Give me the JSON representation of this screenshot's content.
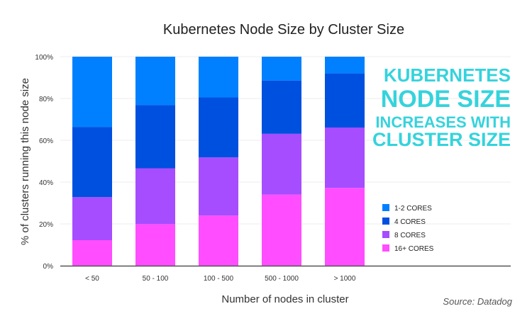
{
  "chart_data": {
    "type": "bar",
    "stacked": true,
    "title": "Kubernetes Node Size by Cluster Size",
    "xlabel": "Number of nodes in cluster",
    "ylabel": "% of clusters running this node size",
    "ylim": [
      0,
      100
    ],
    "yticks": [
      "0%",
      "20%",
      "40%",
      "60%",
      "80%",
      "100%"
    ],
    "grid": true,
    "legend_position": "right",
    "categories": [
      "< 50",
      "50 - 100",
      "100 - 500",
      "500 - 1000",
      "> 1000"
    ],
    "series": [
      {
        "name": "16+ CORES",
        "color": "#ff4dff",
        "values": [
          12.2,
          19.9,
          24.0,
          34.0,
          37.2
        ]
      },
      {
        "name": "8 CORES",
        "color": "#a64dff",
        "values": [
          20.6,
          26.7,
          27.8,
          29.1,
          28.9
        ]
      },
      {
        "name": "4 CORES",
        "color": "#0050e0",
        "values": [
          33.6,
          30.3,
          28.7,
          25.5,
          25.9
        ]
      },
      {
        "name": "1-2 CORES",
        "color": "#0080ff",
        "values": [
          33.6,
          23.1,
          19.5,
          11.4,
          8.0
        ]
      }
    ],
    "annotation": [
      "KUBERNETES",
      "NODE SIZE",
      "INCREASES WITH",
      "CLUSTER SIZE"
    ],
    "annotation_color": "#35d3dc",
    "source": "Source: Datadog"
  }
}
